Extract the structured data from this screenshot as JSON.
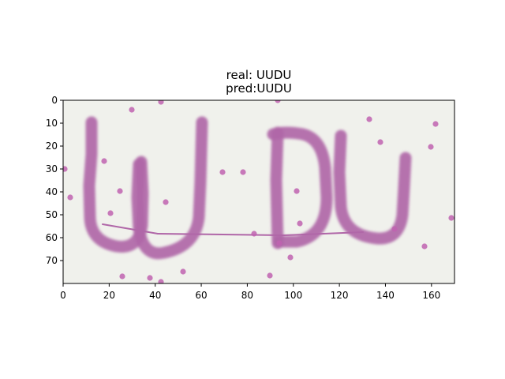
{
  "chart_data": {
    "type": "image",
    "title_lines": [
      "real: UUDU",
      "pred:UUDU"
    ],
    "image": {
      "width": 170,
      "height": 80,
      "background_color": "#f0f1ec",
      "ink_color": "#b067a8",
      "noise_color": "#c063b0",
      "text": "UUDU"
    },
    "x_axis": {
      "range": [
        0,
        170
      ],
      "ticks": [
        0,
        20,
        40,
        60,
        80,
        100,
        120,
        140,
        160
      ]
    },
    "y_axis": {
      "range": [
        0,
        80
      ],
      "inverted": true,
      "ticks": [
        0,
        10,
        20,
        30,
        40,
        50,
        60,
        70
      ]
    },
    "grid": false
  }
}
